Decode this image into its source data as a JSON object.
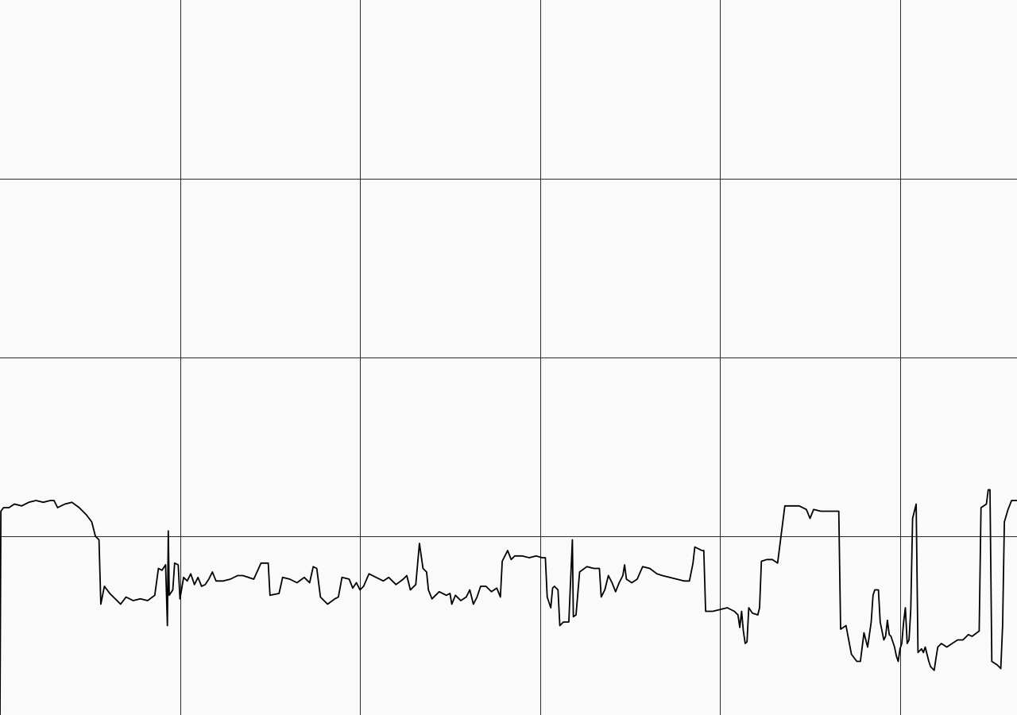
{
  "chart_data": {
    "type": "line",
    "title": "",
    "xlabel": "",
    "ylabel": "",
    "xlim": [
      0,
      565
    ],
    "ylim": [
      0,
      4
    ],
    "grid": true,
    "legend": "none",
    "x_gridlines": [
      0,
      100,
      200,
      300,
      400,
      500
    ],
    "y_gridlines": [
      0,
      1,
      2,
      3,
      4
    ],
    "series": [
      {
        "color": "#000000",
        "points": [
          [
            0,
            0.0
          ],
          [
            0.5,
            1.14
          ],
          [
            2,
            1.16
          ],
          [
            5,
            1.16
          ],
          [
            8,
            1.18
          ],
          [
            12,
            1.17
          ],
          [
            16,
            1.19
          ],
          [
            20,
            1.2
          ],
          [
            24,
            1.19
          ],
          [
            28,
            1.2
          ],
          [
            30,
            1.2
          ],
          [
            32,
            1.16
          ],
          [
            36,
            1.18
          ],
          [
            40,
            1.19
          ],
          [
            44,
            1.16
          ],
          [
            48,
            1.12
          ],
          [
            51,
            1.08
          ],
          [
            53,
            1.0
          ],
          [
            55,
            0.98
          ],
          [
            56,
            0.62
          ],
          [
            58,
            0.72
          ],
          [
            61,
            0.68
          ],
          [
            64,
            0.65
          ],
          [
            67,
            0.62
          ],
          [
            70,
            0.66
          ],
          [
            74,
            0.64
          ],
          [
            78,
            0.65
          ],
          [
            82,
            0.64
          ],
          [
            86,
            0.67
          ],
          [
            88,
            0.82
          ],
          [
            90,
            0.81
          ],
          [
            92,
            0.84
          ],
          [
            93,
            0.5
          ],
          [
            93.5,
            1.03
          ],
          [
            94,
            0.67
          ],
          [
            96,
            0.7
          ],
          [
            97,
            0.85
          ],
          [
            99,
            0.84
          ],
          [
            100,
            0.65
          ],
          [
            102,
            0.77
          ],
          [
            104,
            0.75
          ],
          [
            106,
            0.79
          ],
          [
            108,
            0.73
          ],
          [
            110,
            0.77
          ],
          [
            112,
            0.72
          ],
          [
            114,
            0.73
          ],
          [
            116,
            0.76
          ],
          [
            118,
            0.8
          ],
          [
            120,
            0.75
          ],
          [
            124,
            0.75
          ],
          [
            128,
            0.76
          ],
          [
            132,
            0.78
          ],
          [
            135,
            0.78
          ],
          [
            141,
            0.76
          ],
          [
            145,
            0.85
          ],
          [
            149,
            0.85
          ],
          [
            150,
            0.67
          ],
          [
            155,
            0.68
          ],
          [
            157,
            0.77
          ],
          [
            161,
            0.76
          ],
          [
            165,
            0.74
          ],
          [
            169,
            0.77
          ],
          [
            172,
            0.74
          ],
          [
            174,
            0.83
          ],
          [
            176,
            0.82
          ],
          [
            178,
            0.66
          ],
          [
            182,
            0.62
          ],
          [
            186,
            0.65
          ],
          [
            188,
            0.66
          ],
          [
            190,
            0.77
          ],
          [
            194,
            0.76
          ],
          [
            196,
            0.71
          ],
          [
            198,
            0.74
          ],
          [
            200,
            0.7
          ],
          [
            202,
            0.72
          ],
          [
            205,
            0.79
          ],
          [
            209,
            0.77
          ],
          [
            213,
            0.75
          ],
          [
            216,
            0.77
          ],
          [
            220,
            0.73
          ],
          [
            224,
            0.76
          ],
          [
            226,
            0.78
          ],
          [
            228,
            0.7
          ],
          [
            231,
            0.73
          ],
          [
            233,
            0.96
          ],
          [
            235,
            0.82
          ],
          [
            237,
            0.8
          ],
          [
            238,
            0.7
          ],
          [
            240,
            0.65
          ],
          [
            244,
            0.69
          ],
          [
            248,
            0.67
          ],
          [
            250,
            0.68
          ],
          [
            251,
            0.62
          ],
          [
            253,
            0.67
          ],
          [
            256,
            0.64
          ],
          [
            259,
            0.66
          ],
          [
            261,
            0.7
          ],
          [
            263,
            0.62
          ],
          [
            265,
            0.66
          ],
          [
            267,
            0.72
          ],
          [
            270,
            0.72
          ],
          [
            273,
            0.69
          ],
          [
            276,
            0.71
          ],
          [
            278,
            0.66
          ],
          [
            279,
            0.86
          ],
          [
            282,
            0.92
          ],
          [
            284,
            0.87
          ],
          [
            286,
            0.89
          ],
          [
            290,
            0.89
          ],
          [
            294,
            0.88
          ],
          [
            298,
            0.89
          ],
          [
            301,
            0.88
          ],
          [
            303,
            0.88
          ],
          [
            304,
            0.66
          ],
          [
            306,
            0.6
          ],
          [
            307,
            0.71
          ],
          [
            308,
            0.72
          ],
          [
            310,
            0.7
          ],
          [
            311,
            0.5
          ],
          [
            313,
            0.52
          ],
          [
            316,
            0.52
          ],
          [
            318,
            0.98
          ],
          [
            318.5,
            0.55
          ],
          [
            320,
            0.56
          ],
          [
            322,
            0.8
          ],
          [
            326,
            0.83
          ],
          [
            330,
            0.82
          ],
          [
            333,
            0.82
          ],
          [
            334,
            0.66
          ],
          [
            336,
            0.7
          ],
          [
            338,
            0.78
          ],
          [
            340,
            0.74
          ],
          [
            342,
            0.69
          ],
          [
            344,
            0.74
          ],
          [
            346,
            0.78
          ],
          [
            347,
            0.84
          ],
          [
            348,
            0.76
          ],
          [
            351,
            0.74
          ],
          [
            354,
            0.76
          ],
          [
            357,
            0.83
          ],
          [
            361,
            0.82
          ],
          [
            365,
            0.79
          ],
          [
            368,
            0.78
          ],
          [
            372,
            0.77
          ],
          [
            376,
            0.76
          ],
          [
            380,
            0.75
          ],
          [
            383,
            0.75
          ],
          [
            385,
            0.85
          ],
          [
            386,
            0.94
          ],
          [
            390,
            0.92
          ],
          [
            391,
            0.92
          ],
          [
            392,
            0.58
          ],
          [
            396,
            0.58
          ],
          [
            400,
            0.59
          ],
          [
            404,
            0.6
          ],
          [
            408,
            0.58
          ],
          [
            410,
            0.56
          ],
          [
            411,
            0.49
          ],
          [
            412,
            0.58
          ],
          [
            413,
            0.47
          ],
          [
            414,
            0.4
          ],
          [
            415,
            0.41
          ],
          [
            416,
            0.6
          ],
          [
            418,
            0.57
          ],
          [
            421,
            0.56
          ],
          [
            422,
            0.6
          ],
          [
            423,
            0.86
          ],
          [
            426,
            0.87
          ],
          [
            429,
            0.87
          ],
          [
            432,
            0.85
          ],
          [
            436,
            1.17
          ],
          [
            440,
            1.17
          ],
          [
            444,
            1.17
          ],
          [
            448,
            1.15
          ],
          [
            450,
            1.1
          ],
          [
            452,
            1.15
          ],
          [
            456,
            1.14
          ],
          [
            460,
            1.14
          ],
          [
            464,
            1.14
          ],
          [
            466,
            1.14
          ],
          [
            467,
            0.48
          ],
          [
            470,
            0.5
          ],
          [
            473,
            0.34
          ],
          [
            476,
            0.3
          ],
          [
            478,
            0.3
          ],
          [
            480,
            0.46
          ],
          [
            482,
            0.38
          ],
          [
            484,
            0.52
          ],
          [
            485,
            0.67
          ],
          [
            486,
            0.7
          ],
          [
            488,
            0.7
          ],
          [
            489,
            0.52
          ],
          [
            491,
            0.42
          ],
          [
            492,
            0.44
          ],
          [
            493,
            0.53
          ],
          [
            494,
            0.45
          ],
          [
            495,
            0.44
          ],
          [
            497,
            0.38
          ],
          [
            498,
            0.33
          ],
          [
            499,
            0.3
          ],
          [
            500,
            0.37
          ],
          [
            501,
            0.4
          ],
          [
            502,
            0.52
          ],
          [
            503,
            0.6
          ],
          [
            504,
            0.4
          ],
          [
            505,
            0.42
          ],
          [
            506,
            0.59
          ],
          [
            507,
            1.1
          ],
          [
            509,
            1.18
          ],
          [
            510,
            0.35
          ],
          [
            512,
            0.37
          ],
          [
            513,
            0.35
          ],
          [
            514,
            0.38
          ],
          [
            516,
            0.3
          ],
          [
            517,
            0.27
          ],
          [
            519,
            0.25
          ],
          [
            520,
            0.32
          ],
          [
            521,
            0.38
          ],
          [
            523,
            0.4
          ],
          [
            526,
            0.38
          ],
          [
            529,
            0.4
          ],
          [
            532,
            0.42
          ],
          [
            535,
            0.42
          ],
          [
            537,
            0.44
          ],
          [
            538,
            0.45
          ],
          [
            540,
            0.44
          ],
          [
            544,
            0.47
          ],
          [
            545,
            1.16
          ],
          [
            548,
            1.18
          ],
          [
            549,
            1.26
          ],
          [
            550,
            1.26
          ],
          [
            551,
            0.3
          ],
          [
            554,
            0.28
          ],
          [
            556,
            0.26
          ],
          [
            557,
            0.5
          ],
          [
            558,
            1.08
          ],
          [
            560,
            1.15
          ],
          [
            562,
            1.2
          ],
          [
            565,
            1.2
          ]
        ]
      }
    ]
  }
}
